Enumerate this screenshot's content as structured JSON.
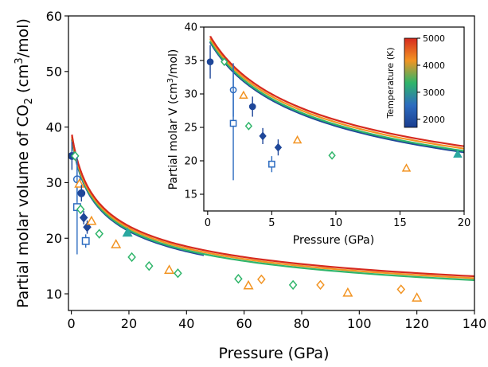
{
  "chart_data": [
    {
      "type": "line",
      "role": "main",
      "xlabel": "Pressure (GPa)",
      "ylabel_prefix": "Partial molar volume of CO",
      "ylabel_sub": "2",
      "ylabel_suffix": " (cm",
      "ylabel_sup": "3",
      "ylabel_end": "/mol)",
      "xlim": [
        -1,
        140
      ],
      "ylim": [
        7,
        60
      ],
      "xticks": [
        0,
        20,
        40,
        60,
        80,
        100,
        120,
        140
      ],
      "yticks": [
        10,
        20,
        30,
        40,
        50,
        60
      ],
      "grid": false,
      "series": [
        {
          "temp": 2000,
          "color": "#1f4799",
          "V0": 38.6,
          "P0": 3.3,
          "pmin": 0.2,
          "pmax": 46,
          "yoff": -0.2
        },
        {
          "temp": 3000,
          "color": "#2fb56a",
          "V0": 38.6,
          "P0": 3.3,
          "pmin": 0.2,
          "pmax": 140,
          "yoff": 0.0
        },
        {
          "temp": 4000,
          "color": "#f29423",
          "V0": 38.6,
          "P0": 3.3,
          "pmin": 0.2,
          "pmax": 140,
          "yoff": 0.35
        },
        {
          "temp": 5000,
          "color": "#d62a1e",
          "V0": 38.6,
          "P0": 3.3,
          "pmin": 0.2,
          "pmax": 140,
          "yoff": 0.7
        }
      ],
      "points": [
        {
          "x": 0.2,
          "y": 34.8,
          "marker": "circle",
          "fill": "#1f4799",
          "color": "#1f4799",
          "err": 2.5
        },
        {
          "x": 1.3,
          "y": 34.8,
          "marker": "diamond-open",
          "color": "#2fb56a"
        },
        {
          "x": 2.0,
          "y": 30.6,
          "marker": "circle-open",
          "color": "#2d6cc0",
          "err": 4.0
        },
        {
          "x": 2.0,
          "y": 25.6,
          "marker": "square-open",
          "color": "#2d6cc0",
          "err": 8.5
        },
        {
          "x": 2.8,
          "y": 29.8,
          "marker": "triangle-open",
          "color": "#f29423"
        },
        {
          "x": 3.2,
          "y": 25.2,
          "marker": "diamond-open",
          "color": "#2fb56a"
        },
        {
          "x": 3.5,
          "y": 28.1,
          "marker": "circle",
          "fill": "#1f4799",
          "color": "#1f4799",
          "err": 1.5
        },
        {
          "x": 4.3,
          "y": 23.7,
          "marker": "diamond",
          "fill": "#1f4799",
          "color": "#1f4799",
          "err": 1.2
        },
        {
          "x": 5.0,
          "y": 19.5,
          "marker": "square-open",
          "color": "#2d6cc0",
          "err": 1.2
        },
        {
          "x": 5.5,
          "y": 22.0,
          "marker": "diamond",
          "fill": "#1f4799",
          "color": "#1f4799",
          "err": 1.2
        },
        {
          "x": 7.0,
          "y": 23.1,
          "marker": "triangle-open",
          "color": "#f29423"
        },
        {
          "x": 9.7,
          "y": 20.8,
          "marker": "diamond-open",
          "color": "#2fb56a"
        },
        {
          "x": 15.5,
          "y": 18.9,
          "marker": "triangle-open",
          "color": "#f29423"
        },
        {
          "x": 19.5,
          "y": 21.0,
          "marker": "triangle",
          "fill": "#2aa8a0",
          "color": "#2aa8a0"
        },
        {
          "x": 21.0,
          "y": 16.6,
          "marker": "diamond-open",
          "color": "#2fb56a"
        },
        {
          "x": 27.0,
          "y": 15.0,
          "marker": "diamond-open",
          "color": "#2fb56a"
        },
        {
          "x": 34.0,
          "y": 14.3,
          "marker": "triangle-open",
          "color": "#f29423"
        },
        {
          "x": 37.0,
          "y": 13.7,
          "marker": "diamond-open",
          "color": "#2fb56a"
        },
        {
          "x": 58.0,
          "y": 12.7,
          "marker": "diamond-open",
          "color": "#2fb56a"
        },
        {
          "x": 61.5,
          "y": 11.5,
          "marker": "triangle-open",
          "color": "#f29423"
        },
        {
          "x": 66.0,
          "y": 12.6,
          "marker": "diamond-open",
          "color": "#f29423"
        },
        {
          "x": 77.0,
          "y": 11.6,
          "marker": "diamond-open",
          "color": "#2fb56a"
        },
        {
          "x": 86.5,
          "y": 11.6,
          "marker": "diamond-open",
          "color": "#f29423"
        },
        {
          "x": 96.0,
          "y": 10.2,
          "marker": "triangle-open",
          "color": "#f29423"
        },
        {
          "x": 114.5,
          "y": 10.8,
          "marker": "diamond-open",
          "color": "#f29423"
        },
        {
          "x": 120.0,
          "y": 9.3,
          "marker": "triangle-open",
          "color": "#f29423"
        }
      ]
    },
    {
      "type": "line",
      "role": "inset",
      "xlabel": "Pressure (GPa)",
      "ylabel_prefix": "Partial molar V (cm",
      "ylabel_sup": "3",
      "ylabel_end": "/mol)",
      "xlim": [
        -0.3,
        20
      ],
      "ylim": [
        12.5,
        40
      ],
      "xticks": [
        0,
        5,
        10,
        15,
        20
      ],
      "yticks": [
        15,
        20,
        25,
        30,
        35,
        40
      ],
      "colorbar": {
        "label": "Temperature (K)",
        "ticks": [
          2000,
          3000,
          4000,
          5000
        ],
        "range": [
          1700,
          5000
        ],
        "stops": [
          "#1a3d8f",
          "#2d6cc0",
          "#2fb56a",
          "#f29423",
          "#d62a1e"
        ]
      }
    }
  ]
}
